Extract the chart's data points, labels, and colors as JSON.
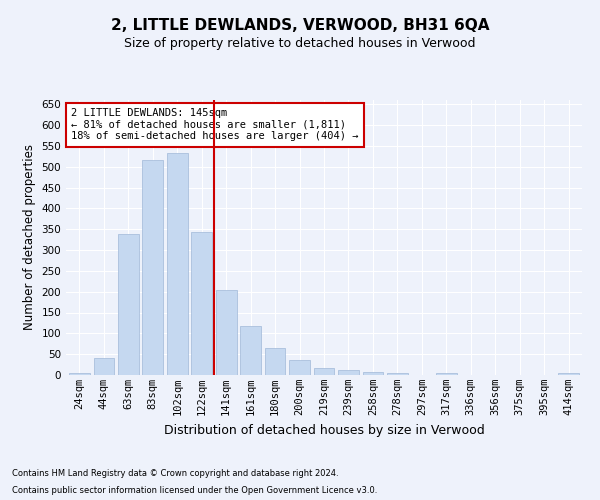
{
  "title": "2, LITTLE DEWLANDS, VERWOOD, BH31 6QA",
  "subtitle": "Size of property relative to detached houses in Verwood",
  "xlabel": "Distribution of detached houses by size in Verwood",
  "ylabel": "Number of detached properties",
  "categories": [
    "24sqm",
    "44sqm",
    "63sqm",
    "83sqm",
    "102sqm",
    "122sqm",
    "141sqm",
    "161sqm",
    "180sqm",
    "200sqm",
    "219sqm",
    "239sqm",
    "258sqm",
    "278sqm",
    "297sqm",
    "317sqm",
    "336sqm",
    "356sqm",
    "375sqm",
    "395sqm",
    "414sqm"
  ],
  "values": [
    5,
    42,
    338,
    516,
    534,
    343,
    203,
    117,
    66,
    36,
    18,
    12,
    8,
    5,
    0,
    5,
    0,
    0,
    0,
    0,
    4
  ],
  "bar_color": "#c5d8f0",
  "bar_edgecolor": "#a0b8d8",
  "vline_color": "#cc0000",
  "vline_pos": 5.5,
  "annotation_text": "2 LITTLE DEWLANDS: 145sqm\n← 81% of detached houses are smaller (1,811)\n18% of semi-detached houses are larger (404) →",
  "annotation_box_color": "#cc0000",
  "ylim": [
    0,
    660
  ],
  "yticks": [
    0,
    50,
    100,
    150,
    200,
    250,
    300,
    350,
    400,
    450,
    500,
    550,
    600,
    650
  ],
  "footnote1": "Contains HM Land Registry data © Crown copyright and database right 2024.",
  "footnote2": "Contains public sector information licensed under the Open Government Licence v3.0.",
  "bg_color": "#eef2fb",
  "plot_bg_color": "#eef2fb",
  "grid_color": "#ffffff",
  "title_fontsize": 11,
  "subtitle_fontsize": 9,
  "xlabel_fontsize": 9,
  "ylabel_fontsize": 8.5,
  "tick_fontsize": 7.5,
  "annot_fontsize": 7.5,
  "footnote_fontsize": 6.0
}
